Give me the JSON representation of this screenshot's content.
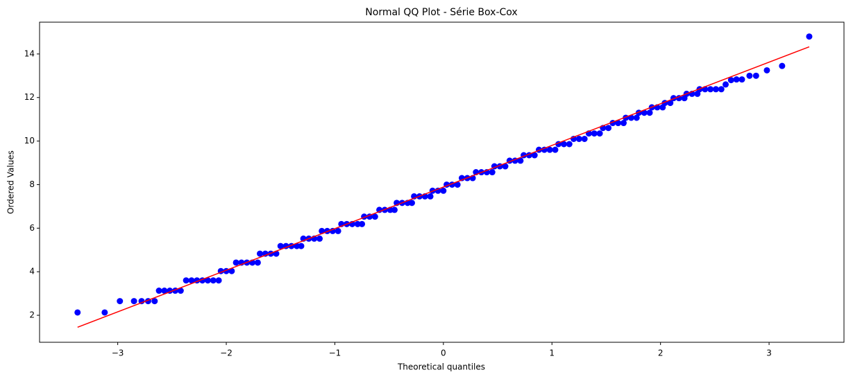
{
  "chart_data": {
    "type": "scatter",
    "title": "Normal QQ Plot - Série Box-Cox",
    "xlabel": "Theoretical quantiles",
    "ylabel": "Ordered Values",
    "xlim": [
      -3.72,
      3.69
    ],
    "ylim": [
      0.76,
      15.46
    ],
    "xticks": [
      {
        "value": -3,
        "label": "−3"
      },
      {
        "value": -2,
        "label": "−2"
      },
      {
        "value": -1,
        "label": "−1"
      },
      0,
      1,
      2,
      3
    ],
    "yticks": [
      2,
      4,
      6,
      8,
      10,
      12,
      14
    ],
    "grid": false,
    "series": [
      {
        "color": "#0000ff",
        "x": [
          -3.37,
          -3.12,
          -2.98,
          -2.85,
          -2.78,
          -2.72,
          -2.66,
          -2.62,
          -2.57,
          -2.52,
          -2.47,
          -2.42,
          -2.37,
          -2.32,
          -2.27,
          -2.22,
          -2.17,
          -2.12,
          -2.07,
          -2.05,
          -2.0,
          -1.95,
          -1.91,
          -1.86,
          -1.81,
          -1.76,
          -1.71,
          -1.69,
          -1.64,
          -1.59,
          -1.54,
          -1.5,
          -1.45,
          -1.4,
          -1.35,
          -1.31,
          -1.29,
          -1.24,
          -1.19,
          -1.14,
          -1.12,
          -1.07,
          -1.02,
          -0.97,
          -0.94,
          -0.89,
          -0.84,
          -0.79,
          -0.75,
          -0.73,
          -0.68,
          -0.63,
          -0.59,
          -0.54,
          -0.49,
          -0.45,
          -0.43,
          -0.38,
          -0.33,
          -0.29,
          -0.27,
          -0.22,
          -0.17,
          -0.12,
          -0.1,
          -0.05,
          0.0,
          0.03,
          0.08,
          0.13,
          0.17,
          0.22,
          0.27,
          0.3,
          0.35,
          0.4,
          0.45,
          0.47,
          0.52,
          0.57,
          0.61,
          0.66,
          0.71,
          0.74,
          0.79,
          0.84,
          0.88,
          0.93,
          0.98,
          1.03,
          1.06,
          1.11,
          1.16,
          1.2,
          1.25,
          1.3,
          1.34,
          1.39,
          1.44,
          1.47,
          1.52,
          1.56,
          1.61,
          1.66,
          1.68,
          1.73,
          1.78,
          1.8,
          1.85,
          1.9,
          1.92,
          1.97,
          2.02,
          2.04,
          2.09,
          2.12,
          2.17,
          2.22,
          2.24,
          2.29,
          2.34,
          2.36,
          2.41,
          2.46,
          2.51,
          2.56,
          2.6,
          2.65,
          2.7,
          2.75,
          2.82,
          2.88,
          2.98,
          3.12,
          3.37
        ],
        "values": [
          2.13,
          2.13,
          2.65,
          2.65,
          2.65,
          2.65,
          2.65,
          3.13,
          3.13,
          3.13,
          3.13,
          3.13,
          3.6,
          3.6,
          3.6,
          3.6,
          3.6,
          3.6,
          3.6,
          4.03,
          4.03,
          4.03,
          4.42,
          4.42,
          4.42,
          4.42,
          4.42,
          4.83,
          4.83,
          4.83,
          4.83,
          5.18,
          5.18,
          5.18,
          5.18,
          5.18,
          5.52,
          5.52,
          5.52,
          5.52,
          5.87,
          5.87,
          5.87,
          5.87,
          6.19,
          6.19,
          6.19,
          6.19,
          6.19,
          6.53,
          6.53,
          6.53,
          6.84,
          6.84,
          6.84,
          6.84,
          7.16,
          7.16,
          7.16,
          7.16,
          7.46,
          7.46,
          7.46,
          7.46,
          7.72,
          7.72,
          7.72,
          8.0,
          8.0,
          8.0,
          8.3,
          8.3,
          8.3,
          8.57,
          8.57,
          8.57,
          8.57,
          8.84,
          8.84,
          8.84,
          9.1,
          9.1,
          9.1,
          9.35,
          9.35,
          9.35,
          9.6,
          9.6,
          9.6,
          9.6,
          9.86,
          9.86,
          9.86,
          10.1,
          10.1,
          10.1,
          10.35,
          10.35,
          10.35,
          10.6,
          10.6,
          10.83,
          10.83,
          10.83,
          11.07,
          11.07,
          11.07,
          11.3,
          11.3,
          11.3,
          11.55,
          11.55,
          11.55,
          11.75,
          11.75,
          11.97,
          11.97,
          11.97,
          12.17,
          12.17,
          12.17,
          12.38,
          12.38,
          12.38,
          12.38,
          12.38,
          12.6,
          12.8,
          12.83,
          12.83,
          13.0,
          13.0,
          13.25,
          13.45,
          14.8
        ]
      },
      {
        "type": "line",
        "color": "#ff0000",
        "x": [
          -3.37,
          3.37
        ],
        "values": [
          1.45,
          14.33
        ]
      }
    ]
  }
}
